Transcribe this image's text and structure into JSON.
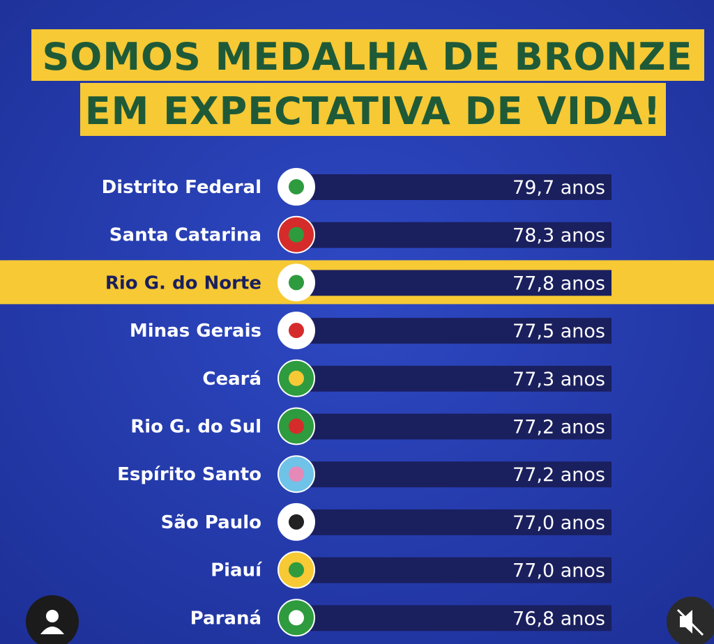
{
  "header": {
    "line1": "SOMOS MEDALHA DE BRONZE",
    "line2": "EM EXPECTATIVA DE VIDA!"
  },
  "rows": [
    {
      "state": "Distrito Federal",
      "value": "79,7 anos"
    },
    {
      "state": "Santa Catarina",
      "value": "78,3 anos"
    },
    {
      "state": "Rio G. do Norte",
      "value": "77,8 anos"
    },
    {
      "state": "Minas Gerais",
      "value": "77,5 anos"
    },
    {
      "state": "Ceará",
      "value": "77,3 anos"
    },
    {
      "state": "Rio G. do Sul",
      "value": "77,2 anos"
    },
    {
      "state": "Espírito Santo",
      "value": "77,2 anos"
    },
    {
      "state": "São Paulo",
      "value": "77,0 anos"
    },
    {
      "state": "Piauí",
      "value": "77,0 anos"
    },
    {
      "state": "Paraná",
      "value": "76,8 anos"
    }
  ]
}
